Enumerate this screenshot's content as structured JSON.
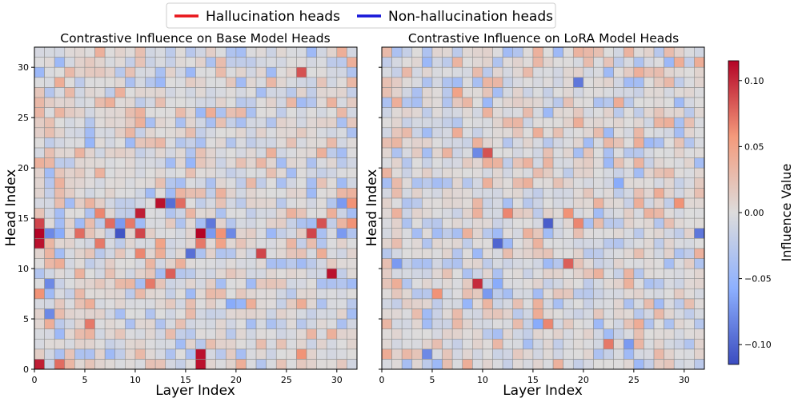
{
  "legend": {
    "items": [
      {
        "label": "Hallucination heads",
        "color": "#e8161b"
      },
      {
        "label": "Non-hallucination heads",
        "color": "#1717d9"
      }
    ]
  },
  "colorbar": {
    "label": "Influence Value",
    "ticks": [
      "0.10",
      "0.05",
      "0.00",
      "−0.05",
      "−0.10"
    ],
    "tick_values": [
      0.1,
      0.05,
      0.0,
      -0.05,
      -0.1
    ],
    "range": [
      -0.115,
      0.115
    ],
    "colormap": "coolwarm"
  },
  "chart_data": [
    {
      "type": "heatmap",
      "title": "Contrastive Influence  on Base Model Heads",
      "xlabel": "Layer Index",
      "ylabel": "Head Index",
      "x_ticks": [
        "0",
        "5",
        "10",
        "15",
        "20",
        "25",
        "30"
      ],
      "y_ticks": [
        "0",
        "5",
        "10",
        "15",
        "20",
        "25",
        "30"
      ],
      "n_layers": 32,
      "n_heads": 32,
      "cells": [
        {
          "layer": 0,
          "head": 0,
          "value": 0.105
        },
        {
          "layer": 2,
          "head": 0,
          "value": 0.075
        },
        {
          "layer": 16,
          "head": 0,
          "value": 0.11
        },
        {
          "layer": 16,
          "head": 1,
          "value": 0.11
        },
        {
          "layer": 26,
          "head": 1,
          "value": 0.06
        },
        {
          "layer": 1,
          "head": 5,
          "value": -0.08
        },
        {
          "layer": 5,
          "head": 4,
          "value": 0.07
        },
        {
          "layer": 19,
          "head": 6,
          "value": -0.06
        },
        {
          "layer": 20,
          "head": 6,
          "value": -0.05
        },
        {
          "layer": 0,
          "head": 7,
          "value": 0.06
        },
        {
          "layer": 1,
          "head": 8,
          "value": -0.08
        },
        {
          "layer": 11,
          "head": 8,
          "value": 0.07
        },
        {
          "layer": 13,
          "head": 9,
          "value": 0.08
        },
        {
          "layer": 29,
          "head": 9,
          "value": 0.11
        },
        {
          "layer": 16,
          "head": 12,
          "value": 0.07
        },
        {
          "layer": 18,
          "head": 12,
          "value": 0.05
        },
        {
          "layer": 22,
          "head": 11,
          "value": 0.09
        },
        {
          "layer": 15,
          "head": 11,
          "value": -0.095
        },
        {
          "layer": 10,
          "head": 11,
          "value": 0.065
        },
        {
          "layer": 12,
          "head": 12,
          "value": 0.05
        },
        {
          "layer": 0,
          "head": 12,
          "value": 0.11
        },
        {
          "layer": 6,
          "head": 12,
          "value": 0.07
        },
        {
          "layer": 0,
          "head": 13,
          "value": 0.115
        },
        {
          "layer": 1,
          "head": 13,
          "value": -0.08
        },
        {
          "layer": 2,
          "head": 13,
          "value": -0.06
        },
        {
          "layer": 4,
          "head": 13,
          "value": 0.075
        },
        {
          "layer": 8,
          "head": 13,
          "value": -0.11
        },
        {
          "layer": 10,
          "head": 13,
          "value": 0.09
        },
        {
          "layer": 16,
          "head": 13,
          "value": 0.115
        },
        {
          "layer": 17,
          "head": 13,
          "value": -0.07
        },
        {
          "layer": 18,
          "head": 13,
          "value": 0.06
        },
        {
          "layer": 19,
          "head": 13,
          "value": -0.08
        },
        {
          "layer": 27,
          "head": 13,
          "value": 0.09
        },
        {
          "layer": 30,
          "head": 13,
          "value": -0.07
        },
        {
          "layer": 0,
          "head": 14,
          "value": 0.09
        },
        {
          "layer": 7,
          "head": 14,
          "value": 0.075
        },
        {
          "layer": 8,
          "head": 14,
          "value": -0.07
        },
        {
          "layer": 9,
          "head": 14,
          "value": 0.07
        },
        {
          "layer": 17,
          "head": 14,
          "value": -0.09
        },
        {
          "layer": 28,
          "head": 14,
          "value": 0.085
        },
        {
          "layer": 31,
          "head": 14,
          "value": 0.06
        },
        {
          "layer": 10,
          "head": 15,
          "value": 0.105
        },
        {
          "layer": 6,
          "head": 15,
          "value": 0.065
        },
        {
          "layer": 12,
          "head": 16,
          "value": 0.11
        },
        {
          "layer": 13,
          "head": 16,
          "value": -0.095
        },
        {
          "layer": 14,
          "head": 16,
          "value": 0.075
        },
        {
          "layer": 30,
          "head": 16,
          "value": -0.07
        },
        {
          "layer": 31,
          "head": 16,
          "value": 0.06
        },
        {
          "layer": 26,
          "head": 29,
          "value": 0.085
        },
        {
          "layer": 15,
          "head": 20,
          "value": -0.05
        },
        {
          "layer": 5,
          "head": 22,
          "value": -0.05
        }
      ]
    },
    {
      "type": "heatmap",
      "title": "Contrastive Influence  on LoRA Model Heads",
      "xlabel": "Layer Index",
      "ylabel": "Head Index",
      "x_ticks": [
        "0",
        "5",
        "10",
        "15",
        "20",
        "25",
        "30"
      ],
      "y_ticks": [
        "0",
        "5",
        "10",
        "15",
        "20",
        "25",
        "30"
      ],
      "n_layers": 32,
      "n_heads": 32,
      "cells": [
        {
          "layer": 4,
          "head": 1,
          "value": -0.08
        },
        {
          "layer": 22,
          "head": 2,
          "value": 0.07
        },
        {
          "layer": 24,
          "head": 2,
          "value": -0.07
        },
        {
          "layer": 15,
          "head": 4,
          "value": -0.06
        },
        {
          "layer": 16,
          "head": 4,
          "value": 0.065
        },
        {
          "layer": 8,
          "head": 6,
          "value": -0.05
        },
        {
          "layer": 9,
          "head": 8,
          "value": 0.1
        },
        {
          "layer": 10,
          "head": 7,
          "value": -0.07
        },
        {
          "layer": 11,
          "head": 8,
          "value": -0.06
        },
        {
          "layer": 18,
          "head": 10,
          "value": 0.08
        },
        {
          "layer": 1,
          "head": 10,
          "value": -0.07
        },
        {
          "layer": 11,
          "head": 12,
          "value": -0.1
        },
        {
          "layer": 16,
          "head": 14,
          "value": -0.105
        },
        {
          "layer": 31,
          "head": 13,
          "value": -0.09
        },
        {
          "layer": 9,
          "head": 21,
          "value": -0.08
        },
        {
          "layer": 10,
          "head": 21,
          "value": 0.085
        },
        {
          "layer": 19,
          "head": 28,
          "value": -0.09
        },
        {
          "layer": 12,
          "head": 15,
          "value": 0.065
        },
        {
          "layer": 18,
          "head": 15,
          "value": 0.06
        },
        {
          "layer": 19,
          "head": 14,
          "value": 0.065
        },
        {
          "layer": 29,
          "head": 16,
          "value": 0.06
        },
        {
          "layer": 5,
          "head": 7,
          "value": 0.06
        },
        {
          "layer": 7,
          "head": 27,
          "value": 0.05
        },
        {
          "layer": 23,
          "head": 18,
          "value": -0.06
        }
      ]
    }
  ]
}
